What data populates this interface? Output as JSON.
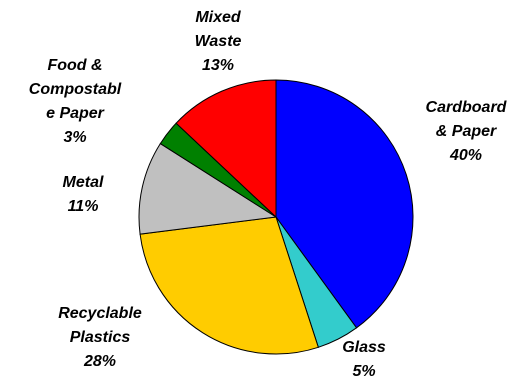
{
  "chart_data": {
    "type": "pie",
    "title": "",
    "slices": [
      {
        "label_lines": [
          "Cardboard",
          "& Paper"
        ],
        "pct_text": "40%",
        "value": 40,
        "color": "#0000ff"
      },
      {
        "label_lines": [
          "Glass"
        ],
        "pct_text": "5%",
        "value": 5,
        "color": "#33cccc"
      },
      {
        "label_lines": [
          "Recyclable",
          "Plastics"
        ],
        "pct_text": "28%",
        "value": 28,
        "color": "#ffcc00"
      },
      {
        "label_lines": [
          "Metal"
        ],
        "pct_text": "11%",
        "value": 11,
        "color": "#c0c0c0"
      },
      {
        "label_lines": [
          "Food &",
          "Compostabl",
          "e Paper"
        ],
        "pct_text": "3%",
        "value": 3,
        "color": "#008000"
      },
      {
        "label_lines": [
          "Mixed",
          "Waste"
        ],
        "pct_text": "13%",
        "value": 13,
        "color": "#ff0000"
      }
    ]
  }
}
